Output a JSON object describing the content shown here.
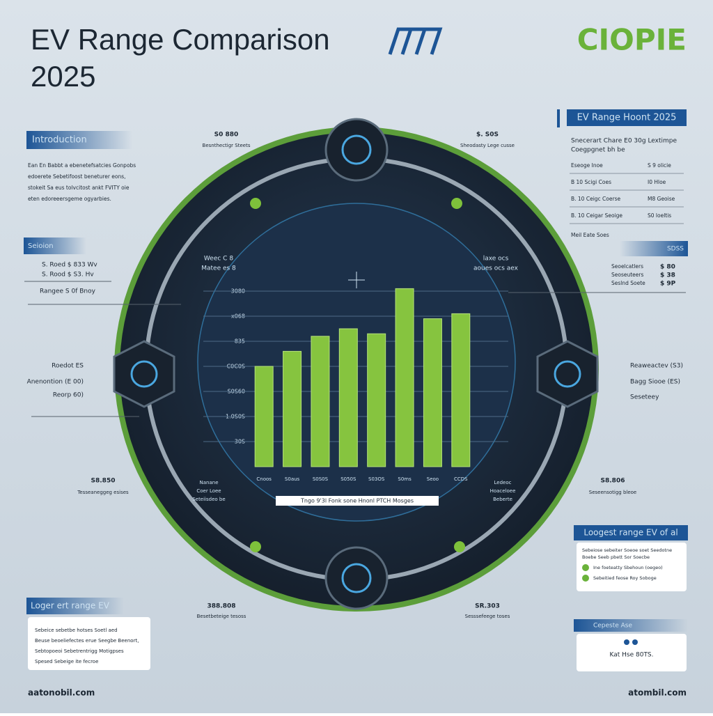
{
  "header": {
    "title_lines": [
      "EV Range Comparison",
      "2025"
    ],
    "logo": "CIOPIE"
  },
  "left": {
    "intro_heading": "Introduction",
    "intro_lines": [
      "Ean En Babbt a ebenetefsatcies Gonpobs",
      "edoerete Sebetifoost beneturer eons,",
      "stokeit Sa eus tolvcitost ankt FVITY oie",
      "eten edoreeersgeme ogyarbies."
    ],
    "section_heading": "Seioion",
    "section_rows": [
      "S. Roed   $ 833 Wv",
      "S. Rood   $ S3. Hv",
      "Rangee    S 0f Bnoy"
    ],
    "callouts": [
      "Roedot ES",
      "Anenontion (E 00)",
      "Reorp 60)"
    ]
  },
  "ring_labels": {
    "top_left": [
      "S0 880",
      "Besnthectigr Steets"
    ],
    "top_right": [
      "$. S0S",
      "Sheodasty Lege cusse"
    ],
    "inner_left": [
      "Weec C 8",
      "Matee es 8"
    ],
    "inner_right": [
      "laxe ocs",
      "aoues ocs aex"
    ],
    "lower_left": [
      "S8.850",
      "Tesseaneggeg esises"
    ],
    "lower_inner_left": [
      "Nanane",
      "Coer Loee",
      "Seteiisdeo be"
    ],
    "lower_inner_right": [
      "Ledeoc",
      "Hoaceloee",
      "Beberte"
    ],
    "lower_right": [
      "S8.806",
      "Seseensotigg bleoe"
    ],
    "bottom_left": [
      "388.808",
      "Besetbeteige tesoss"
    ],
    "bottom_right": [
      "SR.303",
      "Sesssefeege toses"
    ]
  },
  "right": {
    "heading": "EV Range Hoont 2025",
    "intro_lines": [
      "Snecerart Chare E0 30g Lextimpe",
      "Coegpgnet bh be"
    ],
    "table_rows": [
      [
        "Eseoge Inoe",
        "S 9 olicie"
      ],
      [
        "B 10 Scigi Coes",
        "I0 Hloe"
      ],
      [
        "B. 10 Ceigc Coerse",
        "M8 Geoise"
      ],
      [
        "B. 10 Ceigar Seoige",
        "S0 loeltis"
      ]
    ],
    "table_note": "Meil Eate Soes",
    "section_heading": "SDSS",
    "section_rows": [
      [
        "Seoelcatlers",
        "$ 80"
      ],
      [
        "Seoseuteers",
        "$ 38"
      ],
      [
        "Seslnd Soete",
        "$ 9P"
      ]
    ],
    "callouts": [
      "Reaweactev (S3)",
      "Bagg Siooe (ES)",
      "Seseteey"
    ]
  },
  "bottom_left_box": {
    "heading": "Loger ert range EV",
    "lines": [
      "Sebeice sebetbe hotses Soetl aed",
      "Beuse beoeliefectes erue Seegbe Beenort,",
      "Sebtopoeoi Sebetrentrigg Motigpses",
      "Spesed Sebeige ite fecroe"
    ]
  },
  "bottom_right_box": {
    "heading": "Loogest range EV of al",
    "lines": [
      "Sebeiose sebeiter Soeoe soet Seedotne",
      "Boebe Seeb pbett Sor Soecbe"
    ],
    "bullets": [
      "Ine foeteatty Sbehoun (oegeo)",
      "Sebeitied feose Roy Soboge"
    ]
  },
  "small_box": {
    "heading": "Cepeste Ase",
    "text": "Kat Hse 80TS."
  },
  "footer": {
    "left": "aatonobil.com",
    "right": "atombil.com"
  },
  "chart_data": {
    "type": "bar",
    "categories": [
      "Cnoos",
      "S0aus",
      "S0S0S",
      "S050S",
      "S03OS",
      "S0ms",
      "Seoo",
      "CCDS"
    ],
    "values": [
      4.0,
      4.6,
      5.2,
      5.5,
      5.3,
      7.1,
      5.9,
      6.1
    ],
    "color": "#86c43f",
    "ylim": [
      0,
      7.5
    ],
    "yticks": [
      {
        "value": 1,
        "label": "30S"
      },
      {
        "value": 2,
        "label": "1.0S0S"
      },
      {
        "value": 3,
        "label": "S0S60"
      },
      {
        "value": 4,
        "label": "C0C0S"
      },
      {
        "value": 5,
        "label": "835"
      },
      {
        "value": 6,
        "label": "x068"
      },
      {
        "value": 7,
        "label": "3080"
      }
    ],
    "grid": true,
    "caption": "Tngo 9'3l Fonk sone Hnonl PTCH Mosges"
  }
}
